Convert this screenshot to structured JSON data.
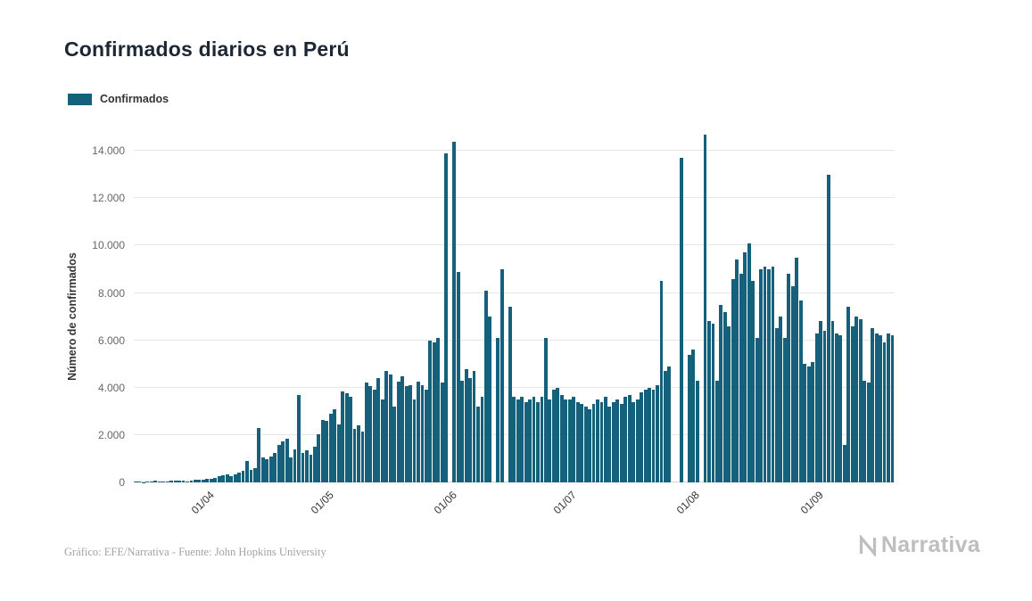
{
  "title": "Confirmados diarios en Perú",
  "footer": {
    "credit": "Gráfico: EFE/Narrativa - Fuente: John Hopkins University"
  },
  "logo": {
    "text": "Narrativa",
    "icon": "narrativa-n-mark",
    "color": "#bcbec0"
  },
  "colors": {
    "bar": "#15607a",
    "grid": "#e6e6e6",
    "axis_text": "#666666"
  },
  "chart_data": {
    "type": "bar",
    "title": "Confirmados diarios en Perú",
    "xlabel": "",
    "ylabel": "Número de confirmados",
    "ylim": [
      0,
      15400
    ],
    "grid": true,
    "legend_position": "top-left",
    "yticks": [
      0,
      2000,
      4000,
      6000,
      8000,
      10000,
      12000,
      14000
    ],
    "ytick_labels": [
      "0",
      "2.000",
      "4.000",
      "6.000",
      "8.000",
      "10.000",
      "12.000",
      "14.000"
    ],
    "xtick_labels": [
      "01/04",
      "01/05",
      "01/06",
      "01/07",
      "01/08",
      "01/09"
    ],
    "series": [
      {
        "name": "Confirmados",
        "color": "#15607a",
        "x": [
          "14/03",
          "15/03",
          "16/03",
          "17/03",
          "18/03",
          "19/03",
          "20/03",
          "21/03",
          "22/03",
          "23/03",
          "24/03",
          "25/03",
          "26/03",
          "27/03",
          "28/03",
          "29/03",
          "30/03",
          "31/03",
          "01/04",
          "02/04",
          "03/04",
          "04/04",
          "05/04",
          "06/04",
          "07/04",
          "08/04",
          "09/04",
          "10/04",
          "11/04",
          "12/04",
          "13/04",
          "14/04",
          "15/04",
          "16/04",
          "17/04",
          "18/04",
          "19/04",
          "20/04",
          "21/04",
          "22/04",
          "23/04",
          "24/04",
          "25/04",
          "26/04",
          "27/04",
          "28/04",
          "29/04",
          "30/04",
          "01/05",
          "02/05",
          "03/05",
          "04/05",
          "05/05",
          "06/05",
          "07/05",
          "08/05",
          "09/05",
          "10/05",
          "11/05",
          "12/05",
          "13/05",
          "14/05",
          "15/05",
          "16/05",
          "17/05",
          "18/05",
          "19/05",
          "20/05",
          "21/05",
          "22/05",
          "23/05",
          "24/05",
          "25/05",
          "26/05",
          "27/05",
          "28/05",
          "29/05",
          "30/05",
          "31/05",
          "01/06",
          "02/06",
          "03/06",
          "04/06",
          "05/06",
          "06/06",
          "07/06",
          "08/06",
          "09/06",
          "10/06",
          "11/06",
          "12/06",
          "13/06",
          "14/06",
          "15/06",
          "16/06",
          "17/06",
          "18/06",
          "19/06",
          "20/06",
          "21/06",
          "22/06",
          "23/06",
          "24/06",
          "25/06",
          "26/06",
          "27/06",
          "28/06",
          "29/06",
          "30/06",
          "01/07",
          "02/07",
          "03/07",
          "04/07",
          "05/07",
          "06/07",
          "07/07",
          "08/07",
          "09/07",
          "10/07",
          "11/07",
          "12/07",
          "13/07",
          "14/07",
          "15/07",
          "16/07",
          "17/07",
          "18/07",
          "19/07",
          "20/07",
          "21/07",
          "22/07",
          "23/07",
          "24/07",
          "25/07",
          "26/07",
          "27/07",
          "28/07",
          "29/07",
          "30/07",
          "31/07",
          "01/08",
          "02/08",
          "03/08",
          "04/08",
          "05/08",
          "06/08",
          "07/08",
          "08/08",
          "09/08",
          "10/08",
          "11/08",
          "12/08",
          "13/08",
          "14/08",
          "15/08",
          "16/08",
          "17/08",
          "18/08",
          "19/08",
          "20/08",
          "21/08",
          "22/08",
          "23/08",
          "24/08",
          "25/08",
          "26/08",
          "27/08",
          "28/08",
          "29/08",
          "30/08",
          "31/08",
          "01/09",
          "02/09",
          "03/09",
          "04/09",
          "05/09",
          "06/09",
          "07/09",
          "08/09",
          "09/09",
          "10/09",
          "11/09",
          "12/09",
          "13/09",
          "14/09",
          "15/09",
          "16/09",
          "17/09",
          "18/09",
          "19/09",
          "20/09"
        ],
        "values": [
          28,
          43,
          15,
          30,
          28,
          89,
          40,
          55,
          27,
          64,
          61,
          64,
          80,
          55,
          93,
          103,
          98,
          114,
          133,
          162,
          193,
          274,
          310,
          330,
          280,
          350,
          420,
          480,
          900,
          530,
          620,
          2300,
          1050,
          980,
          1100,
          1250,
          1600,
          1750,
          1850,
          1050,
          1400,
          3700,
          1250,
          1350,
          1150,
          1500,
          2050,
          2650,
          2600,
          2900,
          3100,
          2450,
          3850,
          3750,
          3600,
          2250,
          2400,
          2150,
          4200,
          4050,
          3900,
          4400,
          3500,
          4700,
          4550,
          3200,
          4250,
          4500,
          4050,
          4100,
          3500,
          4250,
          4100,
          3900,
          6000,
          5900,
          6100,
          4200,
          13900,
          0,
          14400,
          8900,
          4300,
          4800,
          4400,
          4700,
          3200,
          3600,
          8100,
          7000,
          0,
          6100,
          9000,
          0,
          7400,
          3600,
          3500,
          3600,
          3400,
          3500,
          3600,
          3400,
          3600,
          6100,
          3500,
          3900,
          4000,
          3700,
          3500,
          3500,
          3600,
          3400,
          3300,
          3200,
          3100,
          3300,
          3500,
          3400,
          3600,
          3200,
          3400,
          3500,
          3300,
          3600,
          3700,
          3400,
          3500,
          3800,
          3900,
          4000,
          3900,
          4100,
          8500,
          4700,
          4900,
          0,
          0,
          13700,
          0,
          5400,
          5600,
          4300,
          0,
          14700,
          6800,
          6700,
          4300,
          7500,
          7200,
          6600,
          8600,
          9400,
          8800,
          9700,
          10100,
          8500,
          6100,
          9000,
          9100,
          9000,
          9100,
          6500,
          7000,
          6100,
          8800,
          8300,
          9500,
          7700,
          5000,
          4900,
          5100,
          6300,
          6800,
          6400,
          13000,
          6800,
          6300,
          6200,
          1600,
          7400,
          6600,
          7000,
          6900,
          4300,
          4200,
          6500,
          6300,
          6200,
          5900,
          6300,
          6200
        ]
      }
    ]
  }
}
